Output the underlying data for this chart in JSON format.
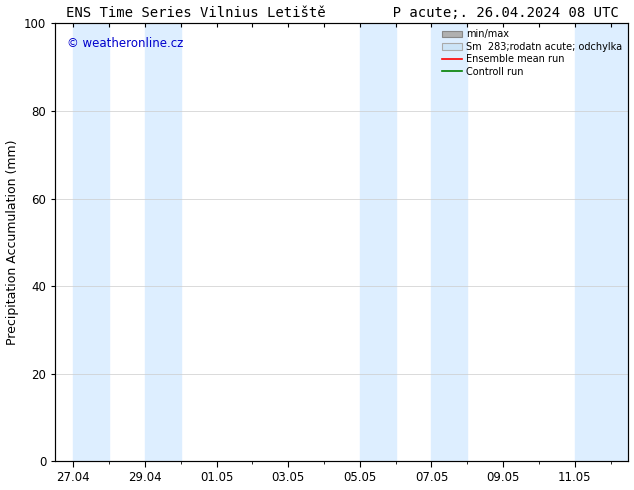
{
  "title": "ENS Time Series Vilnius Letiště        P acute;. 26.04.2024 08 UTC",
  "ylabel": "Precipitation Accumulation (mm)",
  "watermark": "© weatheronline.cz",
  "watermark_color": "#0000cc",
  "ylim": [
    0,
    100
  ],
  "yticks": [
    0,
    20,
    40,
    60,
    80,
    100
  ],
  "background_color": "#ffffff",
  "plot_bg_color": "#ffffff",
  "shade_color": "#ddeeff",
  "shade_alpha": 1.0,
  "xtick_labels": [
    "27.04",
    "29.04",
    "01.05",
    "03.05",
    "05.05",
    "07.05",
    "09.05",
    "11.05"
  ],
  "xtick_positions": [
    0,
    2,
    4,
    6,
    8,
    10,
    12,
    14
  ],
  "xlim": [
    -0.5,
    15.5
  ],
  "shade_bands": [
    [
      0,
      1
    ],
    [
      2,
      3
    ],
    [
      8,
      9
    ],
    [
      10,
      11
    ],
    [
      14,
      15.5
    ]
  ],
  "legend_labels": [
    "min/max",
    "Sm  283;rodatn acute; odchylka",
    "Ensemble mean run",
    "Controll run"
  ],
  "title_fontsize": 10,
  "label_fontsize": 9,
  "tick_fontsize": 8.5
}
